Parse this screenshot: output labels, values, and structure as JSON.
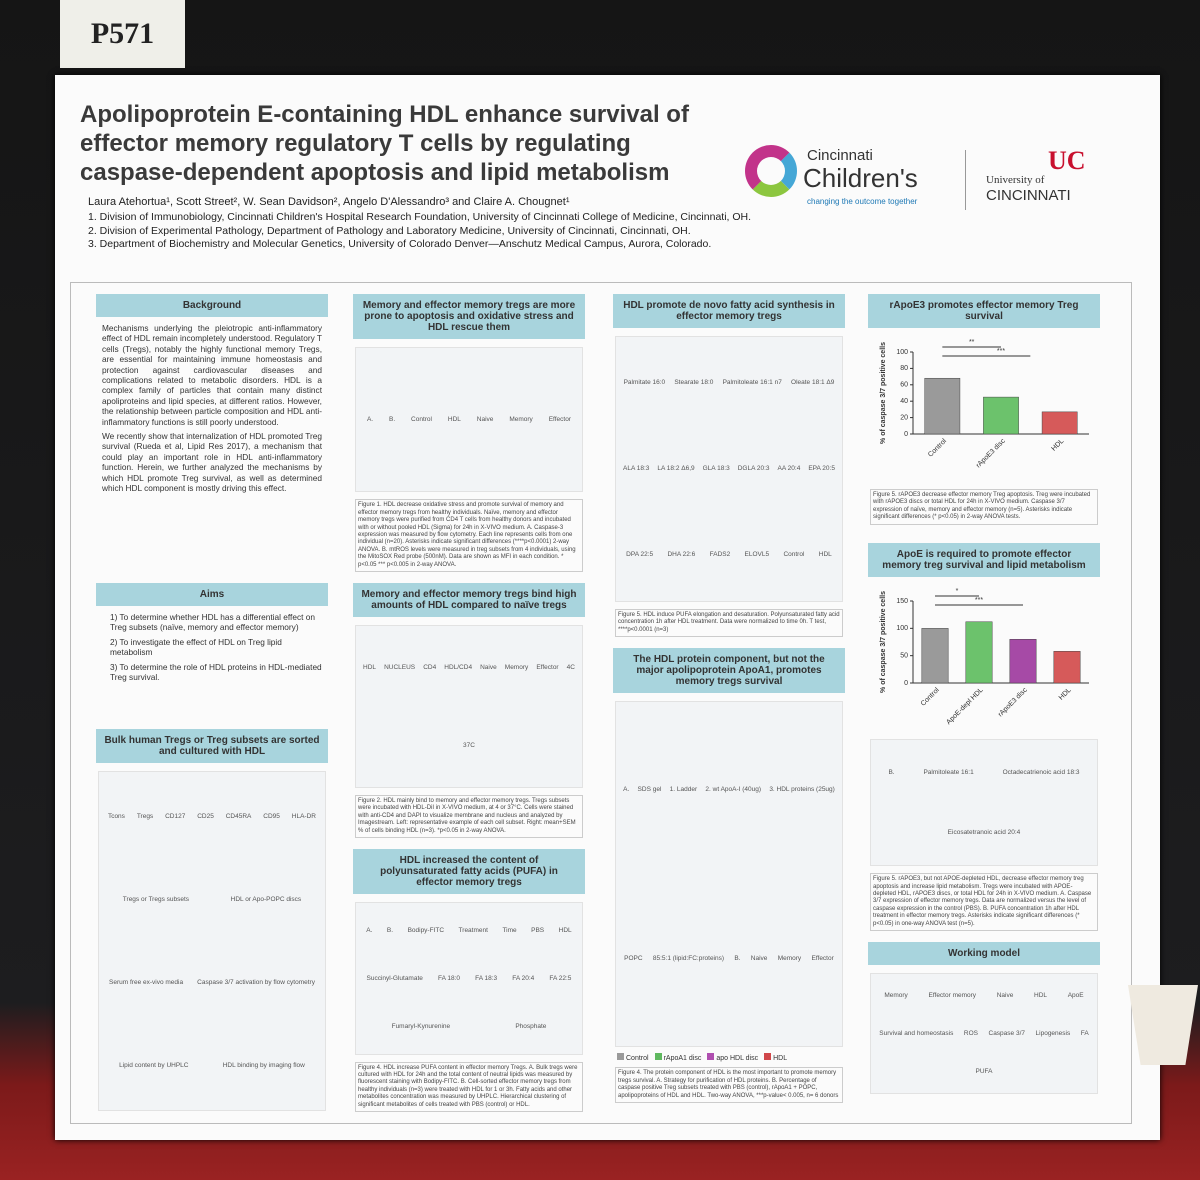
{
  "board_number": "P571",
  "header": {
    "title": "Apolipoprotein E-containing HDL enhance survival of effector memory regulatory T cells by regulating caspase-dependent apoptosis and lipid metabolism",
    "authors": "Laura Atehortua¹, Scott Street², W. Sean Davidson², Angelo D'Alessandro³ and Claire A. Chougnet¹",
    "affiliations": [
      "1.   Division of Immunobiology, Cincinnati Children's Hospital Research Foundation, University of Cincinnati College of Medicine, Cincinnati, OH.",
      "2.   Division of Experimental Pathology, Department of Pathology and Laboratory Medicine, University of Cincinnati, Cincinnati, OH.",
      "3.   Department of Biochemistry and Molecular Genetics, University of Colorado Denver—Anschutz Medical Campus, Aurora, Colorado."
    ],
    "logo_cch": [
      "Cincinnati",
      "Children's",
      "changing the outcome together"
    ],
    "logo_uc": [
      "University of",
      "CINCINNATI"
    ]
  },
  "columns": [
    [
      {
        "title": "Background",
        "paragraphs": [
          "Mechanisms underlying the pleiotropic anti-inflammatory effect of HDL remain incompletely understood. Regulatory T cells (Tregs), notably the highly functional memory Tregs, are essential for maintaining immune homeostasis and protection against cardiovascular diseases and complications related to metabolic disorders. HDL is a complex family of particles that contain many distinct apoliproteins and lipid species, at different ratios. However, the relationship between particle composition and HDL anti-inflammatory functions is still poorly understood.",
          "We recently show that internalization of HDL promoted Treg survival (Rueda et al, Lipid Res 2017), a mechanism that could play an important role in HDL anti-inflammatory function. Herein, we further analyzed the mechanisms by which HDL promote Treg survival, as well as determined which HDL component is mostly driving this effect."
        ]
      },
      {
        "title": "Aims",
        "items": [
          "1) To determine whether HDL has a differential effect on Treg subsets (naïve, memory and effector memory)",
          "2) To investigate the effect of HDL on Treg lipid metabolism",
          "3) To determine the role of HDL proteins in HDL-mediated Treg survival."
        ]
      },
      {
        "title": "Bulk human Tregs or Treg subsets are sorted and cultured with HDL",
        "labels": [
          "Tcons",
          "Tregs",
          "CD127",
          "CD25",
          "CD45RA",
          "CD95",
          "HLA-DR",
          "Tregs or Tregs subsets",
          "HDL or Apo-POPC discs",
          "Serum free ex-vivo media",
          "Caspase 3/7 activation by flow cytometry",
          "Lipid content by UHPLC",
          "HDL binding by imaging flow"
        ]
      }
    ],
    [
      {
        "title": "Memory and effector memory tregs are more prone to apoptosis and oxidative stress and HDL rescue them",
        "labels": [
          "A.",
          "B.",
          "Control",
          "HDL",
          "Naive",
          "Memory",
          "Effector"
        ],
        "caption": "Figure 1. HDL decrease oxidative stress and promote survival of memory and effector memory tregs from healthy individuals. Naïve, memory and effector memory tregs were purified from CD4 T cells from healthy donors and incubated with or without pooled HDL (Sigma) for 24h in X-VIVO medium. A. Caspase-3 expression was measured by flow cytometry. Each line represents cells from one individual (n=20). Asterisks indicate significant differences (****p<0.0001) 2-way ANOVA. B. mtROS levels were measured in treg subsets from 4 individuals, using the MitoSOX Red probe (500nM). Data are shown as MFI in each condition. * p<0.05 *** p<0.005 in 2-way ANOVA."
      },
      {
        "title": "Memory and effector memory tregs bind high amounts of HDL compared to naïve tregs",
        "labels": [
          "HDL",
          "NUCLEUS",
          "CD4",
          "HDL/CD4",
          "Naive",
          "Memory",
          "Effector",
          "4C",
          "37C"
        ],
        "caption": "Figure 2. HDL mainly bind to memory and effector memory tregs. Tregs subsets were incubated with HDL-DiI in X-VIVO medium, at 4 or 37°C. Cells were stained with anti-CD4 and DAPI to visualize membrane and nucleus and analyzed by Imagestream. Left: representative example of each cell subset. Right: mean+SEM % of cells binding HDL (n=3). *p<0.05 in 2-way ANOVA."
      },
      {
        "title": "HDL increased the content of polyunsaturated fatty acids (PUFA) in effector memory tregs",
        "labels": [
          "A.",
          "B.",
          "Bodipy-FITC",
          "Treatment",
          "Time",
          "PBS",
          "HDL",
          "Succinyl-Glutamate",
          "FA 18:0",
          "FA 18:3",
          "FA 20:4",
          "FA 22:5",
          "Fumaryl-Kynurenine",
          "Phosphate"
        ],
        "caption": "Figure 4. HDL increase PUFA content in effector memory Tregs. A. Bulk tregs were cultured with HDL for 24h and the total content of neutral lipids was measured by fluorescent staining with Bodipy-FITC. B. Cell-sorted effector memory tregs from healthy individuals (n=3) were treated with HDL for 1 or 3h. Fatty acids and other metabolites concentration was measured by UHPLC. Hierarchical clustering of significant metabolites of cells treated with PBS (control) or HDL."
      }
    ],
    [
      {
        "title": "HDL promote de novo fatty acid synthesis in effector memory tregs",
        "labels": [
          "Palmitate 16:0",
          "Stearate 18:0",
          "Palmitoleate 16:1 n7",
          "Oleate 18:1 Δ9",
          "ALA 18:3",
          "LA 18:2 Δ6,9",
          "GLA 18:3",
          "DGLA 20:3",
          "AA 20:4",
          "EPA 20:5",
          "DPA 22:5",
          "DHA 22:6",
          "FADS2",
          "ELOVL5",
          "Control",
          "HDL"
        ],
        "caption": "Figure 5. HDL induce PUFA elongation and desaturation. Polyunsaturated fatty acid concentration 1h after HDL treatment. Data were normalized to time 0h. T test, ****p<0.0001 (n=3)"
      },
      {
        "title": "The HDL protein component, but not the major apolipoprotein ApoA1, promotes memory tregs survival",
        "labels": [
          "A.",
          "SDS gel",
          "1. Ladder",
          "2. wt ApoA-I (40ug)",
          "3. HDL proteins (25ug)",
          "POPC",
          "85:5:1 (lipid:FC:proteins)",
          "B.",
          "Naive",
          "Memory",
          "Effector"
        ],
        "legend": [
          {
            "name": "Control",
            "color": "#9a9a9a"
          },
          {
            "name": "rApoA1 disc",
            "color": "#5fb85f"
          },
          {
            "name": "apo HDL disc",
            "color": "#b04fb0"
          },
          {
            "name": "HDL",
            "color": "#d0474a"
          }
        ],
        "caption": "Figure 4. The protein component of HDL is the most important to promote memory tregs survival. A. Strategy for purification of HDL proteins. B. Percentage of caspase positive Treg subsets treated with PBS (control), rApoA1 + POPC, apolipoproteins of HDL and HDL. Two-way ANOVA, ***p-value< 0.005, n= 6 donors"
      }
    ],
    [
      {
        "title": "rApoE3 promotes effector memory Treg survival",
        "chart": {
          "type": "bar",
          "ylabel": "% of caspase 3/7 positive cells",
          "categories": [
            "Control",
            "rApoE3 disc",
            "HDL"
          ],
          "values": [
            68,
            45,
            27
          ],
          "colors": [
            "#9a9a9a",
            "#6cc26c",
            "#d65a5a"
          ],
          "ylim": [
            0,
            100
          ],
          "yticks": [
            0,
            20,
            40,
            60,
            80,
            100
          ],
          "annotations": [
            "**",
            "***"
          ]
        },
        "caption": "Figure 5. rAPOE3 decrease effector memory Treg apoptosis. Treg were incubated with rAPOE3 discs or total HDL for 24h in X-VIVO medium. Caspase 3/7 expression of naïve, memory and effector memory (n=5). Asterisks indicate significant differences (* p<0.05) in 2-way ANOVA tests."
      },
      {
        "title": "ApoE is required to promote effector memory treg survival and lipid metabolism",
        "chart": {
          "type": "bar",
          "ylabel": "% of caspase 3/7 positive cells",
          "categories": [
            "Control",
            "ApoE-depl HDL",
            "rApoE3 disc",
            "HDL"
          ],
          "values": [
            100,
            112,
            80,
            58
          ],
          "colors": [
            "#9a9a9a",
            "#6cc26c",
            "#a64aa6",
            "#d65a5a"
          ],
          "ylim": [
            0,
            150
          ],
          "yticks": [
            0,
            50,
            100,
            150
          ],
          "annotations": [
            "*",
            "***"
          ]
        },
        "labels": [
          "B.",
          "Palmitoleate 16:1",
          "Octadecatrienoic acid 18:3",
          "Eicosatetranoic acid 20:4"
        ],
        "caption": "Figure 5. rAPOE3, but not APOE-depleted HDL, decrease effector memory treg apoptosis and increase lipid metabolism. Tregs were incubated with APOE-depleted HDL, rAPOE3 discs, or total HDL for 24h in X-VIVO medium. A. Caspase 3/7 expression of effector memory tregs. Data are normalized versus the level of caspase expression in the control (PBS). B. PUFA concentration 1h after HDL treatment in effector memory tregs. Asterisks indicate significant differences (* p<0.05) in one-way ANOVA test (n=5)."
      },
      {
        "title": "Working model",
        "labels": [
          "Memory",
          "Effector memory",
          "Naive",
          "HDL",
          "ApoE",
          "Survival and homeostasis",
          "ROS",
          "Caspase 3/7",
          "Lipogenesis",
          "FA",
          "PUFA"
        ]
      }
    ]
  ]
}
